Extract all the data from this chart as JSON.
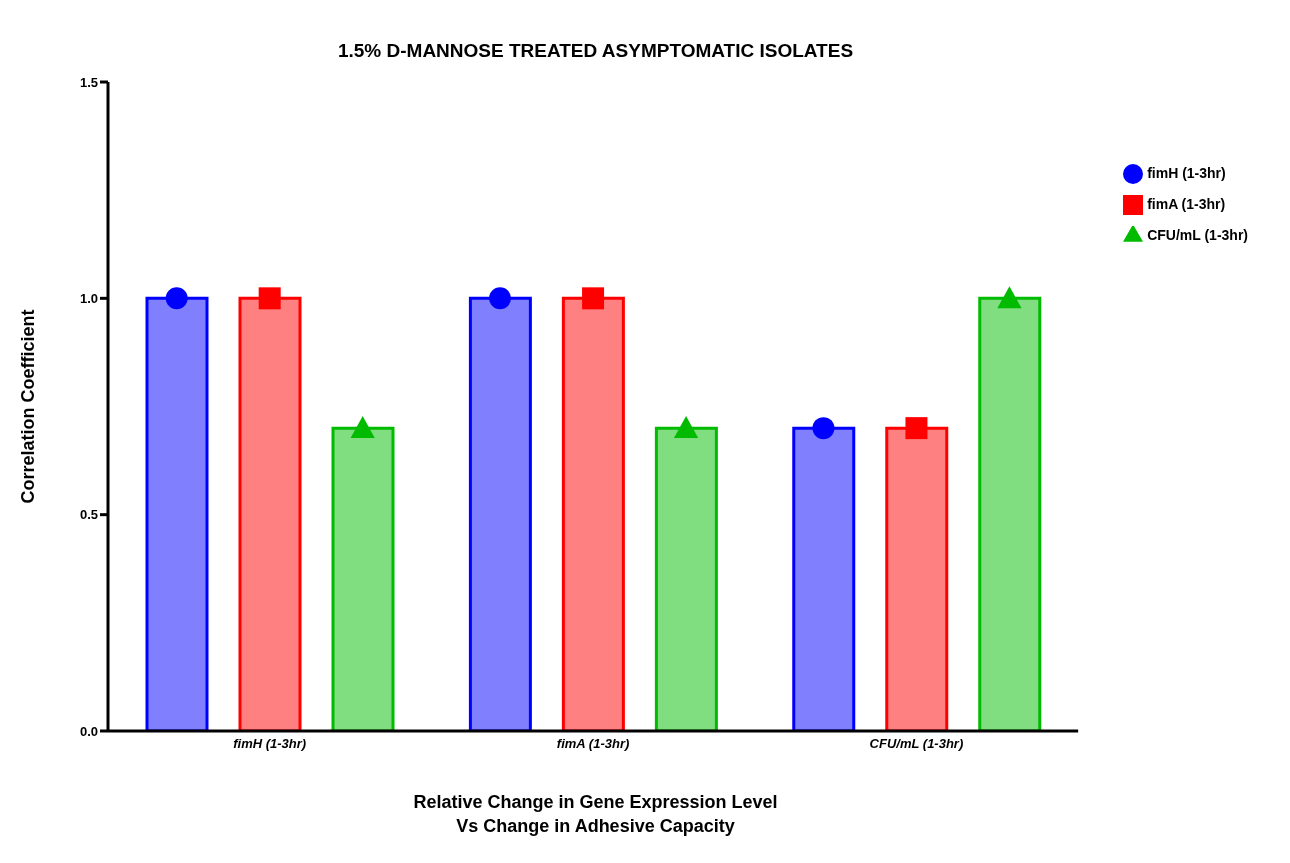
{
  "chart_data": {
    "type": "bar",
    "title": "1.5% D-MANNOSE TREATED ASYMPTOMATIC ISOLATES",
    "xlabel": "Relative Change in Gene Expression Level\nVs Change in Adhesive Capacity",
    "ylabel": "Correlation Coefficient",
    "categories": [
      "fimH (1-3hr)",
      "fimA (1-3hr)",
      "CFU/mL (1-3hr)"
    ],
    "series": [
      {
        "color": "#0000ff",
        "values": [
          1.0,
          1.0,
          0.7
        ]
      },
      {
        "color": "#ff0000",
        "values": [
          1.0,
          1.0,
          0.7
        ]
      },
      {
        "color": "#00bb00",
        "values": [
          0.7,
          0.7,
          1.0
        ]
      },
      {
        "type": "scatter",
        "name": "fimH (1-3hr)",
        "color": "#0000ff",
        "marker": "circle",
        "x": [
          "fimH (1-3hr)",
          "fimA (1-3hr)",
          "CFU/mL (1-3hr)"
        ],
        "values": [
          1.0,
          1.0,
          0.7
        ]
      },
      {
        "type": "scatter",
        "name": "fimA (1-3hr)",
        "color": "#ff0000",
        "marker": "square",
        "x": [
          "fimH (1-3hr)",
          "fimA (1-3hr)",
          "CFU/mL (1-3hr)"
        ],
        "values": [
          1.0,
          1.0,
          0.7
        ]
      },
      {
        "type": "scatter",
        "name": "CFU/mL (1-3hr)",
        "color": "#00bb00",
        "marker": "triangle",
        "x": [
          "fimH (1-3hr)",
          "fimA (1-3hr)",
          "CFU/mL (1-3hr)"
        ],
        "values": [
          0.7,
          0.7,
          1.0
        ]
      }
    ],
    "ylim": [
      0,
      1.5
    ],
    "yticks": [
      {
        "value": 0,
        "label": "0.0"
      },
      {
        "value": 0.5,
        "label": "0.5"
      },
      {
        "value": 1,
        "label": "1.0"
      },
      {
        "value": 1.5,
        "label": "1.5"
      }
    ],
    "grid": false,
    "legend": "top right"
  }
}
